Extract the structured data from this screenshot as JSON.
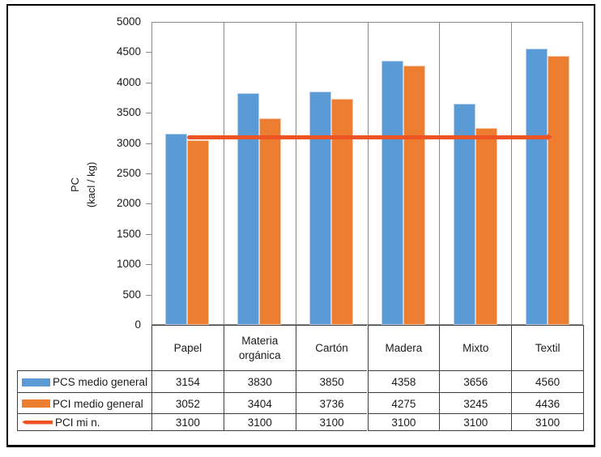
{
  "chart_data": {
    "type": "bar",
    "title": "",
    "categories": [
      "Papel",
      "Materia orgánica",
      "Cartón",
      "Madera",
      "Mixto",
      "Textil"
    ],
    "series": [
      {
        "name": "PCS medio general",
        "kind": "bar",
        "color": "#5B9BD5",
        "values": [
          3154,
          3830,
          3850,
          4358,
          3656,
          4560
        ]
      },
      {
        "name": "PCI medio general",
        "kind": "bar",
        "color": "#ED7D31",
        "values": [
          3052,
          3404,
          3736,
          4275,
          3245,
          4436
        ]
      },
      {
        "name": "PCI mi n.",
        "kind": "line",
        "color": "#EC5424",
        "values": [
          3100,
          3100,
          3100,
          3100,
          3100,
          3100
        ]
      }
    ],
    "xlabel": "",
    "ylabel": "PC (kacl / kg)",
    "ylabel_lines": [
      "PC",
      "(kacl / kg)"
    ],
    "ylim": [
      0,
      5000
    ],
    "ytick_step": 500,
    "yticks": [
      "5000",
      "4500",
      "4000",
      "3500",
      "3000",
      "2500",
      "2000",
      "1500",
      "1000",
      "500",
      "0"
    ],
    "grid": "vertical category separators only",
    "legend_position": "table rows bottom-left"
  }
}
